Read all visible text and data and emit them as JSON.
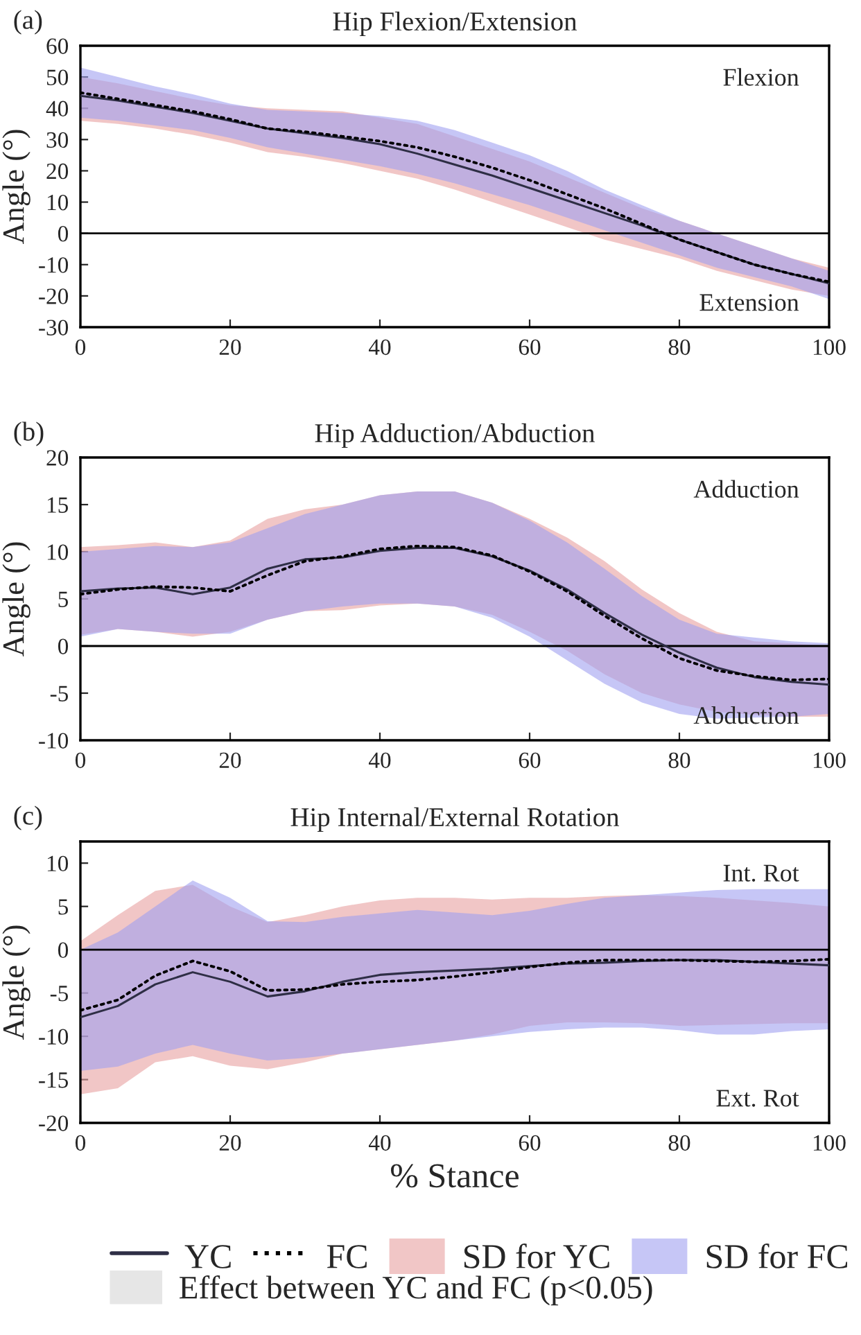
{
  "chart_data": [
    {
      "type": "line",
      "title": "Hip Flexion/Extension",
      "ylabel": "Angle (°)",
      "annotations": [
        "(a)",
        "Flexion",
        "Extension"
      ],
      "x": [
        0,
        5,
        10,
        15,
        20,
        25,
        30,
        35,
        40,
        45,
        50,
        55,
        60,
        65,
        70,
        75,
        80,
        85,
        90,
        95,
        100
      ],
      "xlim": [
        0,
        100
      ],
      "xticks": [
        0,
        20,
        40,
        60,
        80,
        100
      ],
      "ylim": [
        -30,
        60
      ],
      "yticks": [
        -30,
        -20,
        -10,
        0,
        10,
        20,
        30,
        40,
        50,
        60
      ],
      "grid": false,
      "legend": false,
      "ref_lines": [
        {
          "axis": "y",
          "value": 0,
          "color": "#000000"
        }
      ],
      "series": [
        {
          "color": "#2e2e45",
          "line_style": "solid",
          "values": [
            44,
            42.5,
            40.5,
            38.5,
            36,
            33.5,
            32,
            30.5,
            28.5,
            25.5,
            22,
            18.5,
            14.5,
            10.5,
            6.5,
            2.5,
            -2,
            -6,
            -10,
            -13,
            -16
          ],
          "lower": [
            36,
            35,
            33.5,
            31.5,
            29,
            26,
            24.5,
            22.5,
            20,
            17.5,
            14,
            10,
            6,
            2,
            -2,
            -5,
            -8,
            -12,
            -15,
            -18,
            -20
          ],
          "upper": [
            50,
            48,
            45.5,
            43,
            41,
            40,
            39.5,
            39,
            37,
            35,
            31,
            27,
            23,
            18,
            13,
            8,
            4,
            0,
            -4,
            -8,
            -11
          ]
        },
        {
          "color": "#000000",
          "line_style": "dotted",
          "values": [
            45,
            43,
            41,
            39,
            36.5,
            33.5,
            32.5,
            31,
            29.5,
            27.5,
            24.5,
            21,
            17,
            12.5,
            8,
            3,
            -2,
            -6,
            -10,
            -13,
            -15.5
          ],
          "lower": [
            37,
            36,
            34.5,
            33,
            30.5,
            27.5,
            25.5,
            23.5,
            21.5,
            19,
            16,
            12.5,
            9,
            5,
            1,
            -3,
            -7,
            -11,
            -14,
            -17,
            -21
          ],
          "upper": [
            53,
            50,
            47,
            44.5,
            41.5,
            39.5,
            39,
            38.5,
            37.5,
            36,
            33,
            29,
            25,
            20,
            14,
            9,
            4,
            0,
            -4,
            -8,
            -12
          ]
        }
      ]
    },
    {
      "type": "line",
      "title": "Hip Adduction/Abduction",
      "ylabel": "Angle (°)",
      "annotations": [
        "(b)",
        "Adduction",
        "Abduction"
      ],
      "x": [
        0,
        5,
        10,
        15,
        20,
        25,
        30,
        35,
        40,
        45,
        50,
        55,
        60,
        65,
        70,
        75,
        80,
        85,
        90,
        95,
        100
      ],
      "xlim": [
        0,
        100
      ],
      "xticks": [
        0,
        20,
        40,
        60,
        80,
        100
      ],
      "ylim": [
        -10,
        20
      ],
      "yticks": [
        -10,
        -5,
        0,
        5,
        10,
        15,
        20
      ],
      "grid": false,
      "legend": false,
      "ref_lines": [
        {
          "axis": "y",
          "value": 0,
          "color": "#000000"
        }
      ],
      "series": [
        {
          "color": "#2e2e45",
          "line_style": "solid",
          "values": [
            5.8,
            6.1,
            6.2,
            5.5,
            6.2,
            8.2,
            9.2,
            9.4,
            10.1,
            10.4,
            10.4,
            9.5,
            8,
            6,
            3.5,
            1.2,
            -0.7,
            -2.3,
            -3.3,
            -3.8,
            -4.1
          ],
          "lower": [
            1.2,
            1.8,
            1.5,
            1.0,
            1.5,
            2.8,
            3.7,
            3.8,
            4.3,
            4.5,
            4.2,
            3.3,
            1.5,
            -0.5,
            -3,
            -5,
            -6.2,
            -7,
            -7.3,
            -7.5,
            -7.5
          ],
          "upper": [
            10.5,
            10.7,
            11,
            10.5,
            11.2,
            13.5,
            14.5,
            15,
            16,
            16.4,
            16.4,
            15.2,
            13.5,
            11.5,
            9,
            6,
            3.5,
            1.5,
            0.5,
            0.3,
            0
          ]
        },
        {
          "color": "#000000",
          "line_style": "dotted",
          "values": [
            5.5,
            6,
            6.3,
            6.2,
            5.8,
            7.5,
            9,
            9.5,
            10.3,
            10.6,
            10.5,
            9.6,
            7.9,
            5.8,
            3.2,
            0.8,
            -1.3,
            -2.6,
            -3.2,
            -3.6,
            -3.5
          ],
          "lower": [
            1,
            1.8,
            1.5,
            1.3,
            1.3,
            2.8,
            3.7,
            4.2,
            4.5,
            4.5,
            4.2,
            3,
            1,
            -1.5,
            -4,
            -6,
            -7.2,
            -7.7,
            -7.6,
            -7.5,
            -7.2
          ],
          "upper": [
            10,
            10.3,
            10.6,
            10.5,
            11,
            12.5,
            14,
            15,
            16,
            16.4,
            16.4,
            15.2,
            13.3,
            11,
            8.2,
            5.3,
            2.8,
            1.3,
            0.9,
            0.5,
            0.3
          ]
        }
      ]
    },
    {
      "type": "line",
      "title": "Hip Internal/External Rotation",
      "xlabel": "% Stance",
      "ylabel": "Angle (°)",
      "annotations": [
        "(c)",
        "Int. Rot",
        "Ext. Rot"
      ],
      "x": [
        0,
        5,
        10,
        15,
        20,
        25,
        30,
        35,
        40,
        45,
        50,
        55,
        60,
        65,
        70,
        75,
        80,
        85,
        90,
        95,
        100
      ],
      "xlim": [
        0,
        100
      ],
      "xticks": [
        0,
        20,
        40,
        60,
        80,
        100
      ],
      "ylim": [
        -20,
        12.5
      ],
      "yticks": [
        -20,
        -15,
        -10,
        -5,
        0,
        5,
        10
      ],
      "grid": false,
      "legend": "bottom",
      "ref_lines": [
        {
          "axis": "y",
          "value": 0,
          "color": "#000000"
        }
      ],
      "series": [
        {
          "name": "YC",
          "color": "#2e2e45",
          "line_style": "solid",
          "values": [
            -7.8,
            -6.5,
            -4,
            -2.6,
            -3.7,
            -5.4,
            -4.8,
            -3.7,
            -2.9,
            -2.6,
            -2.4,
            -2.2,
            -1.9,
            -1.6,
            -1.5,
            -1.3,
            -1.2,
            -1.2,
            -1.4,
            -1.6,
            -1.8
          ],
          "lower": [
            -16.7,
            -16,
            -13,
            -12.3,
            -13.4,
            -13.8,
            -13,
            -12,
            -11.5,
            -11,
            -10.5,
            -9.8,
            -8.8,
            -8.4,
            -8.4,
            -8.5,
            -8.8,
            -8.7,
            -8.6,
            -8.5,
            -8.5
          ],
          "upper": [
            1,
            4,
            6.8,
            7.5,
            5,
            3.2,
            4,
            5,
            5.7,
            6,
            6,
            5.8,
            6,
            6,
            6.2,
            6.3,
            6.2,
            6,
            5.7,
            5.4,
            5
          ]
        },
        {
          "name": "FC",
          "color": "#000000",
          "line_style": "dotted",
          "values": [
            -7,
            -5.8,
            -3,
            -1.3,
            -2.5,
            -4.7,
            -4.6,
            -4,
            -3.7,
            -3.5,
            -3.1,
            -2.6,
            -2,
            -1.5,
            -1.2,
            -1.2,
            -1.2,
            -1.3,
            -1.4,
            -1.3,
            -1.1
          ],
          "lower": [
            -14,
            -13.5,
            -12,
            -11,
            -12,
            -12.8,
            -12.5,
            -12,
            -11.5,
            -11,
            -10.5,
            -10,
            -9.5,
            -9.2,
            -9,
            -9,
            -9.3,
            -9.8,
            -9.8,
            -9.4,
            -9.2
          ],
          "upper": [
            0,
            2,
            5,
            8,
            6,
            3.3,
            3.2,
            3.8,
            4.2,
            4.6,
            4.3,
            4,
            4.5,
            5.3,
            6,
            6.3,
            6.6,
            6.9,
            7,
            7,
            7
          ]
        },
        {
          "name": "SD for YC",
          "type": "area",
          "color": "#e8a0a0",
          "values": [
            null,
            null,
            null,
            null,
            null,
            null,
            null,
            null,
            null,
            null,
            null,
            null,
            null,
            null,
            null,
            null,
            null,
            null,
            null,
            null,
            null
          ]
        },
        {
          "name": "SD for FC",
          "type": "area",
          "color": "#a0a0f0",
          "values": [
            null,
            null,
            null,
            null,
            null,
            null,
            null,
            null,
            null,
            null,
            null,
            null,
            null,
            null,
            null,
            null,
            null,
            null,
            null,
            null,
            null
          ]
        },
        {
          "name": "Effect between YC and FC (p<0.05)",
          "type": "area",
          "color": "#e6e6e6",
          "values": [
            null,
            null,
            null,
            null,
            null,
            null,
            null,
            null,
            null,
            null,
            null,
            null,
            null,
            null,
            null,
            null,
            null,
            null,
            null,
            null,
            null
          ]
        }
      ]
    }
  ]
}
